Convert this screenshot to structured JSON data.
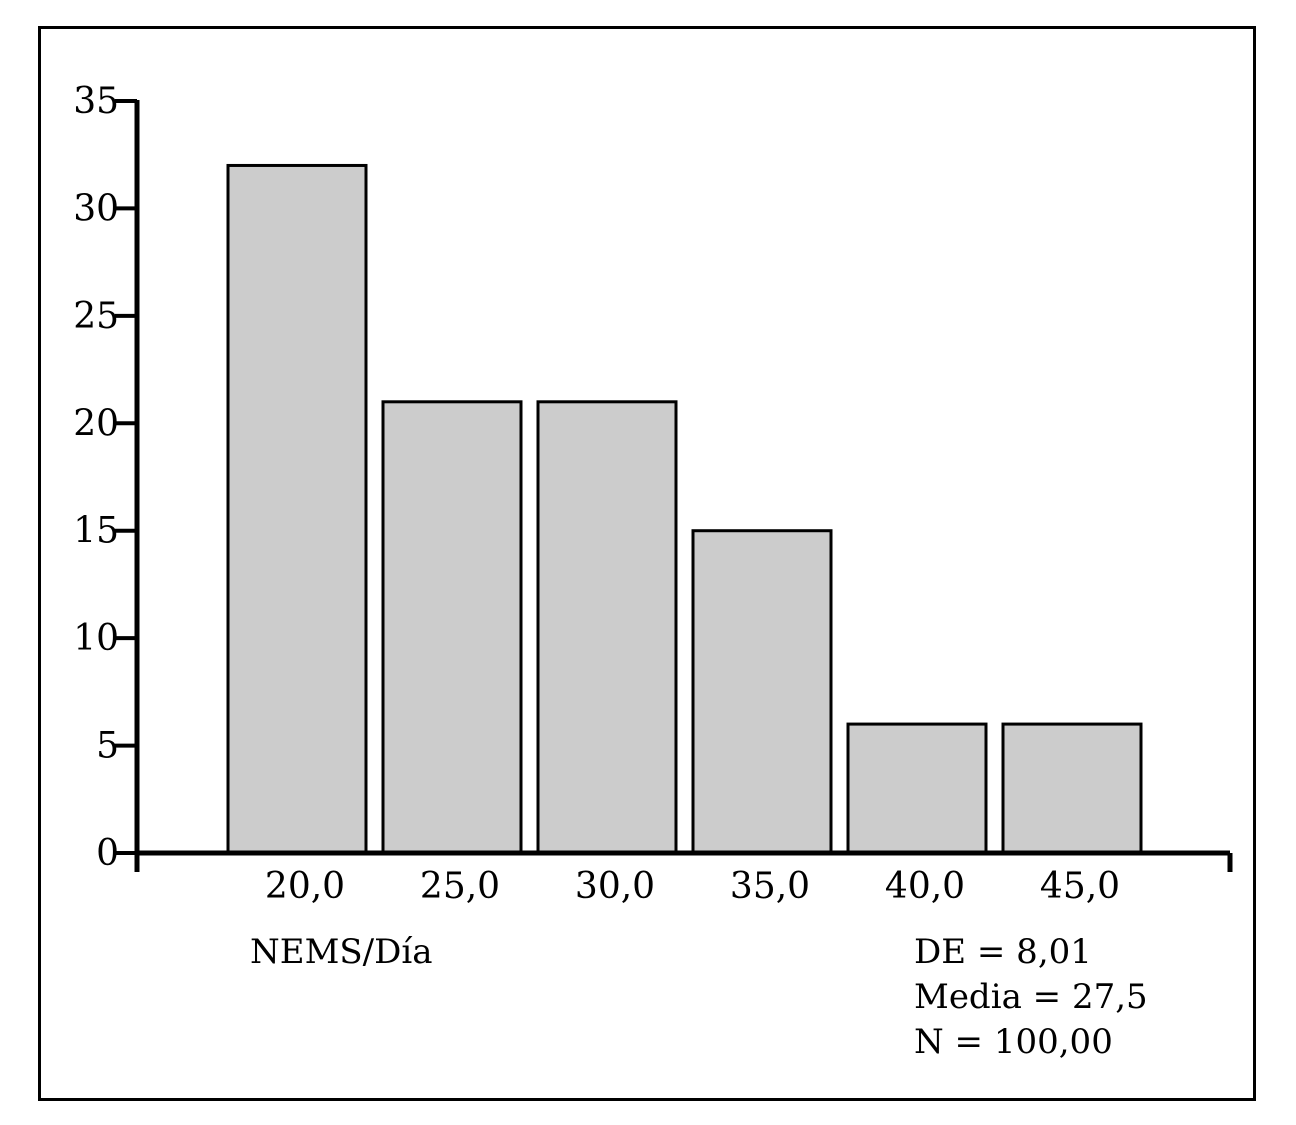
{
  "chart_data": {
    "type": "bar",
    "categories": [
      "20,0",
      "25,0",
      "30,0",
      "35,0",
      "40,0",
      "45,0"
    ],
    "values": [
      32,
      21,
      21,
      15,
      6,
      6
    ],
    "title": "",
    "xlabel": "NEMS/Día",
    "ylabel": "",
    "ylim": [
      0,
      35
    ],
    "yticks": [
      "0",
      "5",
      "10",
      "15",
      "20",
      "25",
      "30",
      "35"
    ],
    "yticks_values": [
      0,
      5,
      10,
      15,
      20,
      25,
      30,
      35
    ],
    "grid": false,
    "bar_color": "#cccccc",
    "stats": [
      "DE = 8,01",
      "Media = 27,5",
      "N = 100,00"
    ]
  }
}
